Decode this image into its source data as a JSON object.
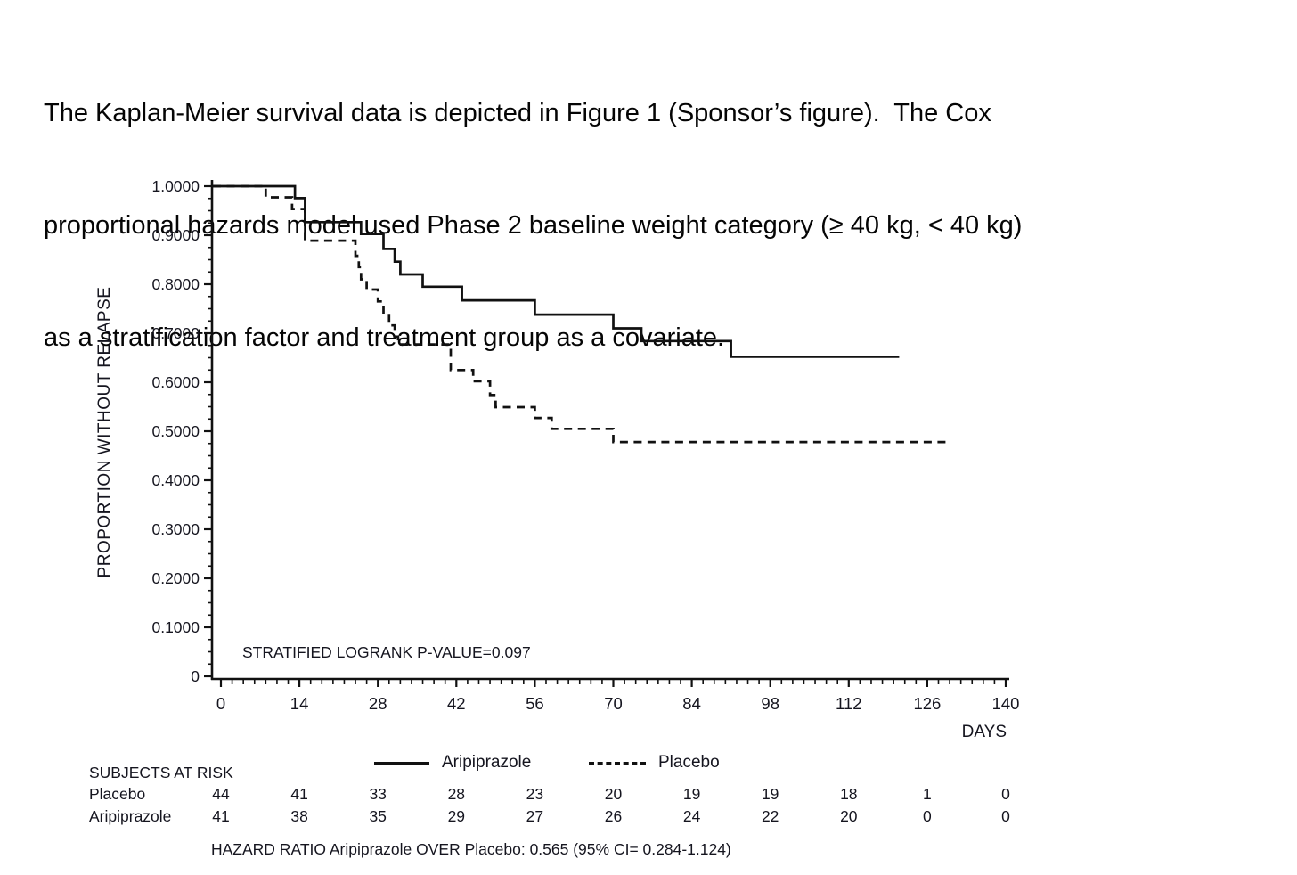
{
  "intro": {
    "lines": [
      "The Kaplan-Meier survival data is depicted in Figure 1 (Sponsor’s figure).  The Cox",
      "proportional hazards model used Phase 2 baseline weight category (≥ 40 kg, < 40 kg)",
      "as a stratification factor and treatment group as a covariate."
    ]
  },
  "chart_data": {
    "type": "line",
    "subtype": "kaplan-meier-step",
    "title": "",
    "xlabel": "DAYS",
    "ylabel": "PROPORTION WITHOUT RELAPSE",
    "xlim": [
      0,
      140
    ],
    "ylim": [
      0,
      1
    ],
    "x_ticks": [
      0,
      14,
      28,
      42,
      56,
      70,
      84,
      98,
      112,
      126,
      140
    ],
    "x_minor_step": 2,
    "y_ticks": [
      {
        "label": "1.0000",
        "value": 1.0
      },
      {
        "label": "0.9000",
        "value": 0.9
      },
      {
        "label": "0.8000",
        "value": 0.8
      },
      {
        "label": "0.7000",
        "value": 0.7
      },
      {
        "label": "0.6000",
        "value": 0.6
      },
      {
        "label": "0.5000",
        "value": 0.5
      },
      {
        "label": "0.4000",
        "value": 0.4
      },
      {
        "label": "0.3000",
        "value": 0.3
      },
      {
        "label": "0.2000",
        "value": 0.2
      },
      {
        "label": "0.1000",
        "value": 0.1
      },
      {
        "label": "0",
        "value": 0
      }
    ],
    "y_minor_step": 0.025,
    "grid": false,
    "annotation": "STRATIFIED LOGRANK P-VALUE=0.097",
    "legend": {
      "position": "below",
      "items": [
        "Aripiprazole",
        "Placebo"
      ]
    },
    "series": [
      {
        "name": "Aripiprazole",
        "style": "solid",
        "end_day": 121,
        "steps": [
          [
            0,
            1.0
          ],
          [
            13.2,
            0.9756
          ],
          [
            15,
            0.9268
          ],
          [
            25,
            0.9024
          ],
          [
            29,
            0.872
          ],
          [
            31,
            0.846
          ],
          [
            32,
            0.82
          ],
          [
            36,
            0.795
          ],
          [
            43,
            0.767
          ],
          [
            56,
            0.738
          ],
          [
            70,
            0.71
          ],
          [
            75,
            0.684
          ],
          [
            91,
            0.652
          ]
        ]
      },
      {
        "name": "Placebo",
        "style": "dashed",
        "end_day": 130,
        "steps": [
          [
            0,
            1.0
          ],
          [
            8,
            0.9773
          ],
          [
            12.7,
            0.9535
          ],
          [
            15,
            0.889
          ],
          [
            24,
            0.858
          ],
          [
            24.6,
            0.835
          ],
          [
            25,
            0.81
          ],
          [
            26,
            0.789
          ],
          [
            28,
            0.765
          ],
          [
            29,
            0.74
          ],
          [
            30,
            0.716
          ],
          [
            31,
            0.693
          ],
          [
            31.6,
            0.677
          ],
          [
            41,
            0.625
          ],
          [
            45,
            0.602
          ],
          [
            48,
            0.574
          ],
          [
            49,
            0.549
          ],
          [
            56,
            0.527
          ],
          [
            59,
            0.505
          ],
          [
            70,
            0.478
          ]
        ]
      }
    ],
    "risk_table": {
      "title": "SUBJECTS AT RISK",
      "days": [
        0,
        14,
        28,
        42,
        56,
        70,
        84,
        98,
        112,
        126,
        140
      ],
      "rows": [
        {
          "label": "Placebo",
          "values": [
            44,
            41,
            33,
            28,
            23,
            20,
            19,
            19,
            18,
            1,
            0
          ]
        },
        {
          "label": "Aripiprazole",
          "values": [
            41,
            38,
            35,
            29,
            27,
            26,
            24,
            22,
            20,
            0,
            0
          ]
        }
      ]
    },
    "footer": "HAZARD RATIO Aripiprazole OVER Placebo: 0.565 (95% CI= 0.284-1.124)"
  },
  "colors": {
    "ink": "#111111",
    "label": "#15151f",
    "background": "#ffffff"
  }
}
